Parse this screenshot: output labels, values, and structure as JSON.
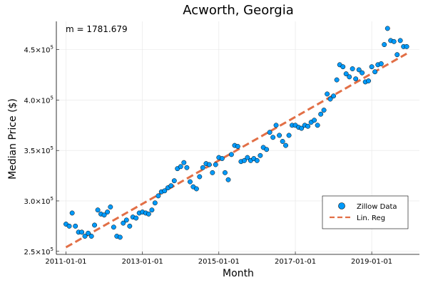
{
  "chart_data": {
    "type": "scatter",
    "title": "Acworth, Georgia",
    "xlabel": "Month",
    "ylabel": "Median Price ($)",
    "annotation": "m = 1781.679",
    "x_ticks": [
      "2011-01-01",
      "2013-01-01",
      "2015-01-01",
      "2017-01-01",
      "2019-01-01"
    ],
    "y_ticks": [
      {
        "mantissa": "2.5",
        "exp": "5",
        "value": 250000
      },
      {
        "mantissa": "3.0",
        "exp": "5",
        "value": 300000
      },
      {
        "mantissa": "3.5",
        "exp": "5",
        "value": 350000
      },
      {
        "mantissa": "4.0",
        "exp": "5",
        "value": 400000
      },
      {
        "mantissa": "4.5",
        "exp": "5",
        "value": 450000
      }
    ],
    "xlim": [
      "2010-10-01",
      "2020-04-01"
    ],
    "ylim": [
      247000,
      478000
    ],
    "grid": true,
    "legend_position": "bottom-right",
    "series": [
      {
        "name": "Zillow Data",
        "kind": "scatter",
        "color": "#009AFA",
        "x": [
          "2011-01-01",
          "2011-02-01",
          "2011-03-01",
          "2011-04-01",
          "2011-05-01",
          "2011-06-01",
          "2011-07-01",
          "2011-08-01",
          "2011-09-01",
          "2011-10-01",
          "2011-11-01",
          "2011-12-01",
          "2012-01-01",
          "2012-02-01",
          "2012-03-01",
          "2012-04-01",
          "2012-05-01",
          "2012-06-01",
          "2012-07-01",
          "2012-08-01",
          "2012-09-01",
          "2012-10-01",
          "2012-11-01",
          "2012-12-01",
          "2013-01-01",
          "2013-02-01",
          "2013-03-01",
          "2013-04-01",
          "2013-05-01",
          "2013-06-01",
          "2013-07-01",
          "2013-08-01",
          "2013-09-01",
          "2013-10-01",
          "2013-11-01",
          "2013-12-01",
          "2014-01-01",
          "2014-02-01",
          "2014-03-01",
          "2014-04-01",
          "2014-05-01",
          "2014-06-01",
          "2014-07-01",
          "2014-08-01",
          "2014-09-01",
          "2014-10-01",
          "2014-11-01",
          "2014-12-01",
          "2015-01-01",
          "2015-02-01",
          "2015-03-01",
          "2015-04-01",
          "2015-05-01",
          "2015-06-01",
          "2015-07-01",
          "2015-08-01",
          "2015-09-01",
          "2015-10-01",
          "2015-11-01",
          "2015-12-01",
          "2016-01-01",
          "2016-02-01",
          "2016-03-01",
          "2016-04-01",
          "2016-05-01",
          "2016-06-01",
          "2016-07-01",
          "2016-08-01",
          "2016-09-01",
          "2016-10-01",
          "2016-11-01",
          "2016-12-01",
          "2017-01-01",
          "2017-02-01",
          "2017-03-01",
          "2017-04-01",
          "2017-05-01",
          "2017-06-01",
          "2017-07-01",
          "2017-08-01",
          "2017-09-01",
          "2017-10-01",
          "2017-11-01",
          "2017-12-01",
          "2018-01-01",
          "2018-02-01",
          "2018-03-01",
          "2018-04-01",
          "2018-05-01",
          "2018-06-01",
          "2018-07-01",
          "2018-08-01",
          "2018-09-01",
          "2018-10-01",
          "2018-11-01",
          "2018-12-01",
          "2019-01-01",
          "2019-02-01",
          "2019-03-01",
          "2019-04-01",
          "2019-05-01",
          "2019-06-01",
          "2019-07-01",
          "2019-08-01",
          "2019-09-01",
          "2019-10-01",
          "2019-11-01",
          "2019-12-01"
        ],
        "y": [
          277000,
          275000,
          288000,
          275000,
          269000,
          269000,
          265000,
          268000,
          265000,
          276000,
          291000,
          287000,
          286000,
          289000,
          294000,
          274000,
          265000,
          264000,
          278000,
          281000,
          275000,
          284000,
          283000,
          288000,
          289000,
          288000,
          287000,
          291000,
          298000,
          305000,
          309000,
          310000,
          313000,
          315000,
          320000,
          332000,
          334000,
          338000,
          333000,
          319000,
          314000,
          312000,
          324000,
          333000,
          337000,
          336000,
          328000,
          336000,
          343000,
          342000,
          328000,
          321000,
          346000,
          355000,
          354000,
          339000,
          340000,
          343000,
          340000,
          342000,
          340000,
          345000,
          353000,
          351000,
          368000,
          363000,
          375000,
          365000,
          359000,
          355000,
          365000,
          375000,
          375000,
          373000,
          372000,
          375000,
          374000,
          378000,
          380000,
          375000,
          386000,
          390000,
          406000,
          401000,
          404000,
          420000,
          435000,
          433000,
          426000,
          423000,
          431000,
          421000,
          430000,
          427000,
          418000,
          419000,
          433000,
          428000,
          435000,
          436000,
          455000,
          471000,
          459000,
          458000,
          445000,
          459000,
          453000,
          453000
        ]
      },
      {
        "name": "Lin. Reg",
        "kind": "line",
        "color": "#E26F46",
        "x": [
          "2011-01-01",
          "2019-12-01"
        ],
        "y": [
          254000,
          446000
        ]
      }
    ]
  }
}
